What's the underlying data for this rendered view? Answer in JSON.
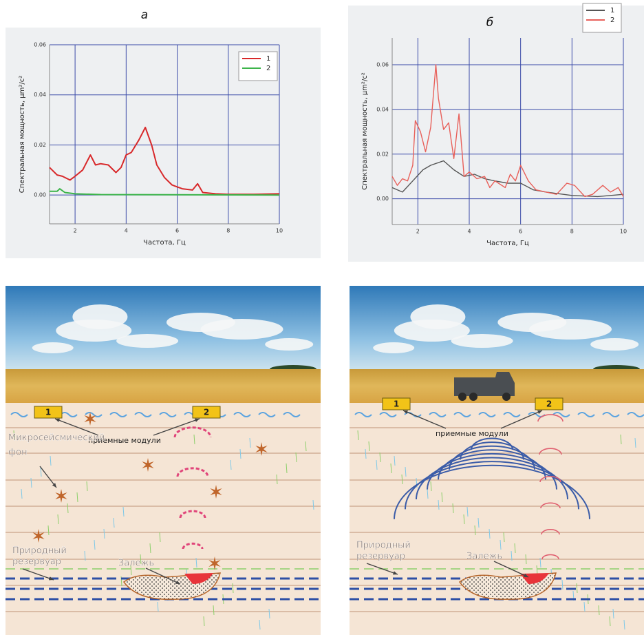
{
  "chart_data": [
    {
      "type": "line",
      "title": "а",
      "x_label": "Частота, Гц",
      "y_label": "Спектральная мощность, µm²/c²",
      "xlim": [
        1,
        10
      ],
      "xticks": [
        2,
        4,
        6,
        8,
        10
      ],
      "ylim": [
        -0.0115,
        0.06
      ],
      "yticks": [
        {
          "value": 0,
          "label": "0.00"
        },
        0.02,
        0.04,
        0.06
      ],
      "grid": true,
      "grid_color": "#3a4aa8",
      "legend": "top-right",
      "series": [
        {
          "name": "1",
          "color": "#d8282a",
          "x": [
            1,
            1.3,
            1.5,
            1.8,
            2.0,
            2.3,
            2.6,
            2.8,
            3.0,
            3.3,
            3.6,
            3.8,
            4.0,
            4.2,
            4.5,
            4.75,
            5.0,
            5.2,
            5.5,
            5.8,
            6.2,
            6.6,
            6.8,
            7.0,
            7.5,
            8,
            9,
            10
          ],
          "values": [
            0.011,
            0.008,
            0.0075,
            0.006,
            0.0075,
            0.01,
            0.016,
            0.012,
            0.0125,
            0.012,
            0.009,
            0.011,
            0.016,
            0.017,
            0.022,
            0.027,
            0.02,
            0.012,
            0.007,
            0.004,
            0.0025,
            0.002,
            0.0045,
            0.001,
            0.0005,
            0.0003,
            0.0003,
            0.0005
          ]
        },
        {
          "name": "2",
          "color": "#3cb44a",
          "x": [
            1,
            1.3,
            1.4,
            1.6,
            2.0,
            3.0,
            10
          ],
          "values": [
            0.0015,
            0.0015,
            0.0025,
            0.001,
            0.0005,
            0.0002,
            0
          ]
        }
      ]
    },
    {
      "type": "line",
      "title": "б",
      "x_label": "Частота, Гц",
      "y_label": "Спектральная мощность, µm²/c²",
      "xlim": [
        1,
        10
      ],
      "xticks": [
        2,
        4,
        6,
        8,
        10
      ],
      "ylim": [
        -0.0115,
        0.072
      ],
      "yticks": [
        {
          "value": 0,
          "label": "0.00"
        },
        0.02,
        0.04,
        0.06
      ],
      "grid": true,
      "grid_color": "#3a4aa8",
      "legend": "above-right",
      "series": [
        {
          "name": "1",
          "color": "#555555",
          "x": [
            1,
            1.4,
            1.8,
            2.2,
            2.5,
            3.0,
            3.4,
            3.8,
            4.2,
            4.6,
            5.0,
            5.5,
            6.0,
            6.5,
            7,
            8,
            9,
            10
          ],
          "values": [
            0.005,
            0.003,
            0.008,
            0.013,
            0.015,
            0.017,
            0.013,
            0.01,
            0.011,
            0.009,
            0.008,
            0.007,
            0.007,
            0.004,
            0.003,
            0.0015,
            0.001,
            0.002
          ]
        },
        {
          "name": "2",
          "color": "#e8605a",
          "x": [
            1,
            1.2,
            1.4,
            1.6,
            1.8,
            1.9,
            2.1,
            2.3,
            2.5,
            2.7,
            2.8,
            3.0,
            3.2,
            3.4,
            3.6,
            3.8,
            4.0,
            4.3,
            4.6,
            4.8,
            5.0,
            5.4,
            5.6,
            5.8,
            6.0,
            6.3,
            6.6,
            7.0,
            7.4,
            7.8,
            8.1,
            8.5,
            8.8,
            9.2,
            9.5,
            9.8,
            10
          ],
          "values": [
            0.01,
            0.006,
            0.009,
            0.008,
            0.015,
            0.035,
            0.03,
            0.021,
            0.032,
            0.06,
            0.045,
            0.031,
            0.034,
            0.018,
            0.038,
            0.01,
            0.012,
            0.009,
            0.01,
            0.005,
            0.008,
            0.005,
            0.011,
            0.008,
            0.015,
            0.008,
            0.004,
            0.003,
            0.002,
            0.007,
            0.006,
            0.001,
            0.002,
            0.006,
            0.003,
            0.005,
            0.001
          ]
        }
      ]
    }
  ],
  "diagrams": [
    {
      "modules": [
        "1",
        "2"
      ],
      "modules_label": "приемные модули",
      "background_label": [
        "Микросейсмический",
        "фон"
      ],
      "reservoir_label": [
        "Природный",
        "резервуар"
      ],
      "deposit_label": "Залежь"
    },
    {
      "modules": [
        "1",
        "2"
      ],
      "modules_label": "приемные модули",
      "reservoir_label": [
        "Природный",
        "резервуар"
      ],
      "deposit_label": "Залежь"
    }
  ]
}
